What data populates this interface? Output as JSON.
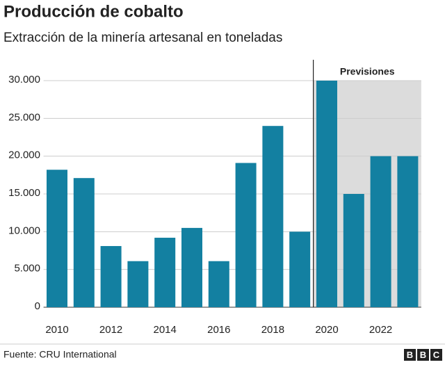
{
  "chart_data": {
    "type": "bar",
    "title": "Producción de cobalto",
    "subtitle": "Extracción de la minería artesanal en toneladas",
    "categories": [
      "2010",
      null,
      "2012",
      null,
      "2014",
      null,
      "2016",
      null,
      "2018",
      null,
      "2020",
      null,
      "2022",
      null
    ],
    "values": [
      18200,
      17100,
      8100,
      6100,
      9200,
      10500,
      6100,
      19100,
      24000,
      10000,
      30000,
      15000,
      20000,
      20000
    ],
    "color": "#1380a1",
    "ylim": [
      0,
      30000
    ],
    "yticks": [
      0,
      {
        "value": 5000,
        "label": "5.000"
      },
      {
        "value": 10000,
        "label": "10.000"
      },
      {
        "value": 15000,
        "label": "15.000"
      },
      {
        "value": 20000,
        "label": "20.000"
      },
      {
        "value": 25000,
        "label": "25.000"
      },
      {
        "value": 30000,
        "label": "30.000"
      }
    ],
    "grid": true,
    "forecast": {
      "label": "Previsiones",
      "start_index": 10
    },
    "source": "Fuente: CRU International",
    "logo": [
      "B",
      "B",
      "C"
    ]
  }
}
